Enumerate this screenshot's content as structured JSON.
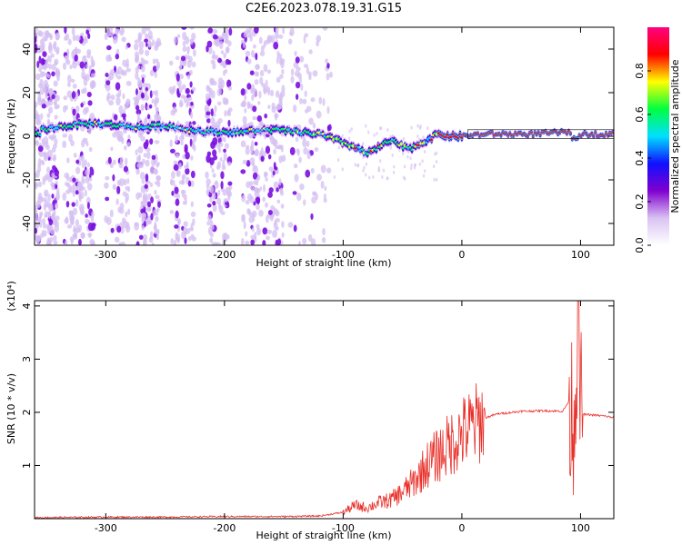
{
  "title": "C2E6.2023.078.19.31.G15",
  "chart_data": [
    {
      "type": "heatmap",
      "xlabel": "Height of straight line (km)",
      "ylabel": "Frequency (Hz)",
      "xlim": [
        -360,
        128
      ],
      "ylim": [
        -50,
        50
      ],
      "xticks": [
        -300,
        -200,
        -100,
        0,
        100
      ],
      "yticks": [
        -40,
        -20,
        0,
        20,
        40
      ],
      "colorbar": {
        "label": "Normalized spectral amplitude",
        "range": [
          0,
          1
        ],
        "ticks": [
          0.0,
          0.2,
          0.4,
          0.6,
          0.8
        ],
        "colormap": [
          "#ffffff",
          "#d9c2f2",
          "#8000d0",
          "#1010ff",
          "#00e0ff",
          "#00ff40",
          "#ffff00",
          "#ff0000",
          "#ff0080"
        ]
      },
      "ridge": [
        {
          "x": -355,
          "f": 3
        },
        {
          "x": -330,
          "f": 5
        },
        {
          "x": -310,
          "f": 6
        },
        {
          "x": -290,
          "f": 5
        },
        {
          "x": -270,
          "f": 4
        },
        {
          "x": -250,
          "f": 5
        },
        {
          "x": -230,
          "f": 3
        },
        {
          "x": -210,
          "f": 2
        },
        {
          "x": -190,
          "f": 2
        },
        {
          "x": -160,
          "f": 3
        },
        {
          "x": -140,
          "f": 2
        },
        {
          "x": -120,
          "f": 1
        },
        {
          "x": -105,
          "f": -2
        },
        {
          "x": -90,
          "f": -5
        },
        {
          "x": -80,
          "f": -8
        },
        {
          "x": -70,
          "f": -5
        },
        {
          "x": -60,
          "f": -2
        },
        {
          "x": -45,
          "f": -6
        },
        {
          "x": -30,
          "f": -2
        },
        {
          "x": -20,
          "f": 1
        },
        {
          "x": -10,
          "f": 0
        },
        {
          "x": 0,
          "f": 0
        },
        {
          "x": 20,
          "f": 1
        },
        {
          "x": 60,
          "f": 1
        },
        {
          "x": 90,
          "f": 2
        },
        {
          "x": 95,
          "f": -2
        },
        {
          "x": 100,
          "f": 1
        },
        {
          "x": 128,
          "f": 1
        }
      ]
    },
    {
      "type": "line",
      "xlabel": "Height of straight line (km)",
      "ylabel": "SNR (10 * v/v)",
      "yscale_label": "(x10⁴)",
      "xlim": [
        -360,
        128
      ],
      "ylim": [
        0,
        4.1
      ],
      "xticks": [
        -300,
        -200,
        -100,
        0,
        100
      ],
      "yticks": [
        1,
        2,
        3,
        4
      ],
      "color": "#e8302a",
      "series": [
        {
          "x": [
            -360,
            -300,
            -250,
            -200,
            -150,
            -120,
            -100,
            -90,
            -80,
            -70,
            -60,
            -50,
            -40,
            -30,
            -20,
            -10,
            0,
            10,
            20,
            30,
            50,
            70,
            85,
            90,
            95,
            98,
            100,
            103,
            110,
            120,
            128
          ],
          "y": [
            0.02,
            0.03,
            0.03,
            0.04,
            0.04,
            0.05,
            0.12,
            0.25,
            0.2,
            0.3,
            0.35,
            0.5,
            0.7,
            1.0,
            1.2,
            1.4,
            1.6,
            1.75,
            1.9,
            1.97,
            2.02,
            2.03,
            2.02,
            2.2,
            2.0,
            4.1,
            1.98,
            1.96,
            1.95,
            1.93,
            1.9
          ]
        }
      ]
    }
  ]
}
